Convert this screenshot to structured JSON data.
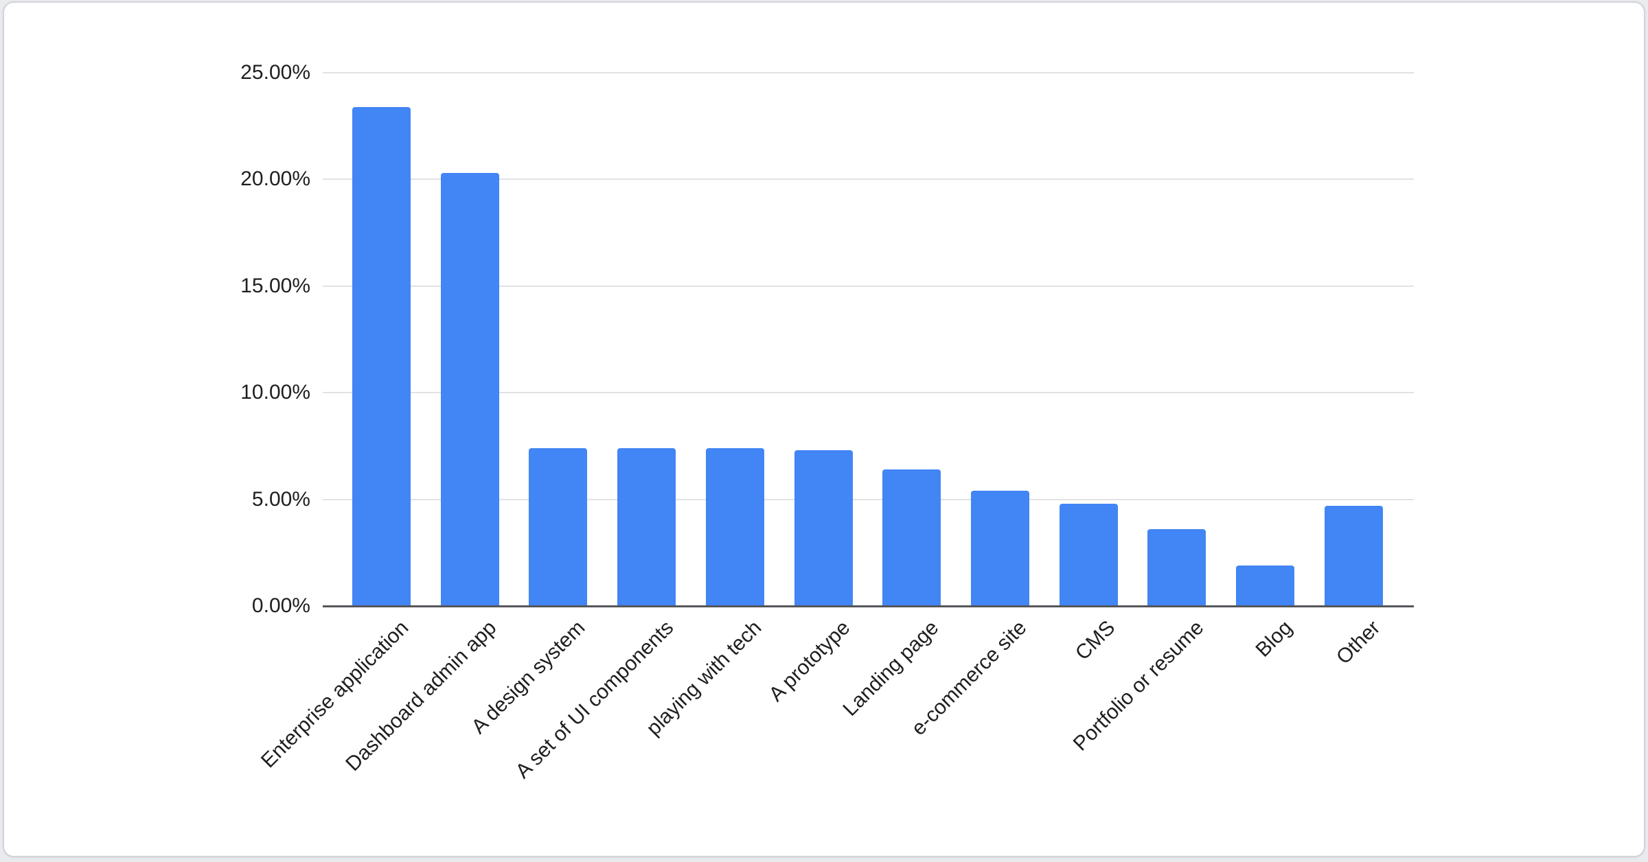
{
  "chart_data": {
    "type": "bar",
    "title": "",
    "xlabel": "",
    "ylabel": "",
    "categories": [
      "Enterprise application",
      "Dashboard admin app",
      "A design system",
      "A set of UI components",
      "playing with tech",
      "A prototype",
      "Landing page",
      "e-commerce site",
      "CMS",
      "Portfolio or resume",
      "Blog",
      "Other"
    ],
    "values": [
      23.4,
      20.3,
      7.4,
      7.4,
      7.4,
      7.3,
      6.4,
      5.4,
      4.8,
      3.6,
      1.9,
      4.7
    ],
    "value_unit": "%",
    "y_ticks": [
      "25.00%",
      "20.00%",
      "15.00%",
      "10.00%",
      "5.00%",
      "0.00%"
    ],
    "ylim": [
      0,
      25
    ],
    "grid": true,
    "legend_position": "none",
    "x_label_rotation_deg": -45,
    "colors": {
      "bar": "#4285f4",
      "gridline": "#e2e2e2",
      "axis_line": "#55565a",
      "tick_label": "#1f1f1f",
      "card_background": "#ffffff",
      "card_border": "#d3d4d8",
      "page_background": "#e9ebee"
    }
  }
}
